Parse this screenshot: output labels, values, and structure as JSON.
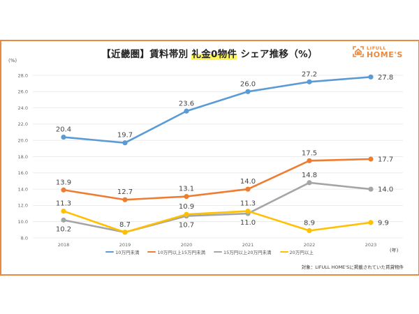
{
  "header": {
    "title_prefix": "【近畿圏】賃料帯別 ",
    "title_highlight": "礼金0物件",
    "title_suffix": " シェア推移（%）",
    "unit_label": "(%)",
    "year_unit_label": "(年)"
  },
  "logo": {
    "small_text": "LIFULL",
    "big_text": "HOME'S",
    "icon": "house-bracket-icon",
    "color": "#E8893F"
  },
  "note": "対象：LIFULL HOME'Sに掲載されていた賃貸物件",
  "colors": {
    "frame": "#E8893F",
    "highlight": "#FFF65A",
    "grid": "#E6E6E6"
  },
  "chart_data": {
    "type": "line",
    "title": "【近畿圏】賃料帯別 礼金0物件 シェア推移（%）",
    "xlabel": "(年)",
    "ylabel": "(%)",
    "x": [
      "2018",
      "2019",
      "2020",
      "2021",
      "2022",
      "2023"
    ],
    "ylim": [
      8.0,
      28.0
    ],
    "yticks": [
      "8.0",
      "10.0",
      "12.0",
      "14.0",
      "16.0",
      "18.0",
      "20.0",
      "22.0",
      "24.0",
      "26.0",
      "28.0"
    ],
    "grid": true,
    "legend_position": "bottom",
    "series": [
      {
        "name": "10万円未満",
        "color": "#5B9BD5",
        "values": [
          20.4,
          19.7,
          23.6,
          26.0,
          27.2,
          27.8
        ],
        "labels": [
          "20.4",
          "19.7",
          "23.6",
          "26.0",
          "27.2",
          "27.8"
        ],
        "label_pos": [
          "above",
          "above",
          "above",
          "above",
          "above",
          "right"
        ]
      },
      {
        "name": "10万円以上15万円未満",
        "color": "#ED7D31",
        "values": [
          13.9,
          12.7,
          13.1,
          14.0,
          17.5,
          17.7
        ],
        "labels": [
          "13.9",
          "12.7",
          "13.1",
          "14.0",
          "17.5",
          "17.7"
        ],
        "label_pos": [
          "above",
          "above",
          "above",
          "above",
          "above",
          "right"
        ]
      },
      {
        "name": "15万円以上20万円未満",
        "color": "#A5A5A5",
        "values": [
          10.2,
          8.7,
          10.7,
          11.0,
          14.8,
          14.0
        ],
        "labels": [
          "10.2",
          "",
          "10.7",
          "11.0",
          "14.8",
          "14.0"
        ],
        "label_pos": [
          "below",
          "none",
          "below",
          "below",
          "above",
          "right"
        ]
      },
      {
        "name": "20万円以上",
        "color": "#FFC000",
        "values": [
          11.3,
          8.7,
          10.9,
          11.3,
          8.9,
          9.9
        ],
        "labels": [
          "11.3",
          "8.7",
          "10.9",
          "11.3",
          "8.9",
          "9.9"
        ],
        "label_pos": [
          "above",
          "above",
          "above",
          "above",
          "above",
          "right"
        ]
      }
    ]
  }
}
